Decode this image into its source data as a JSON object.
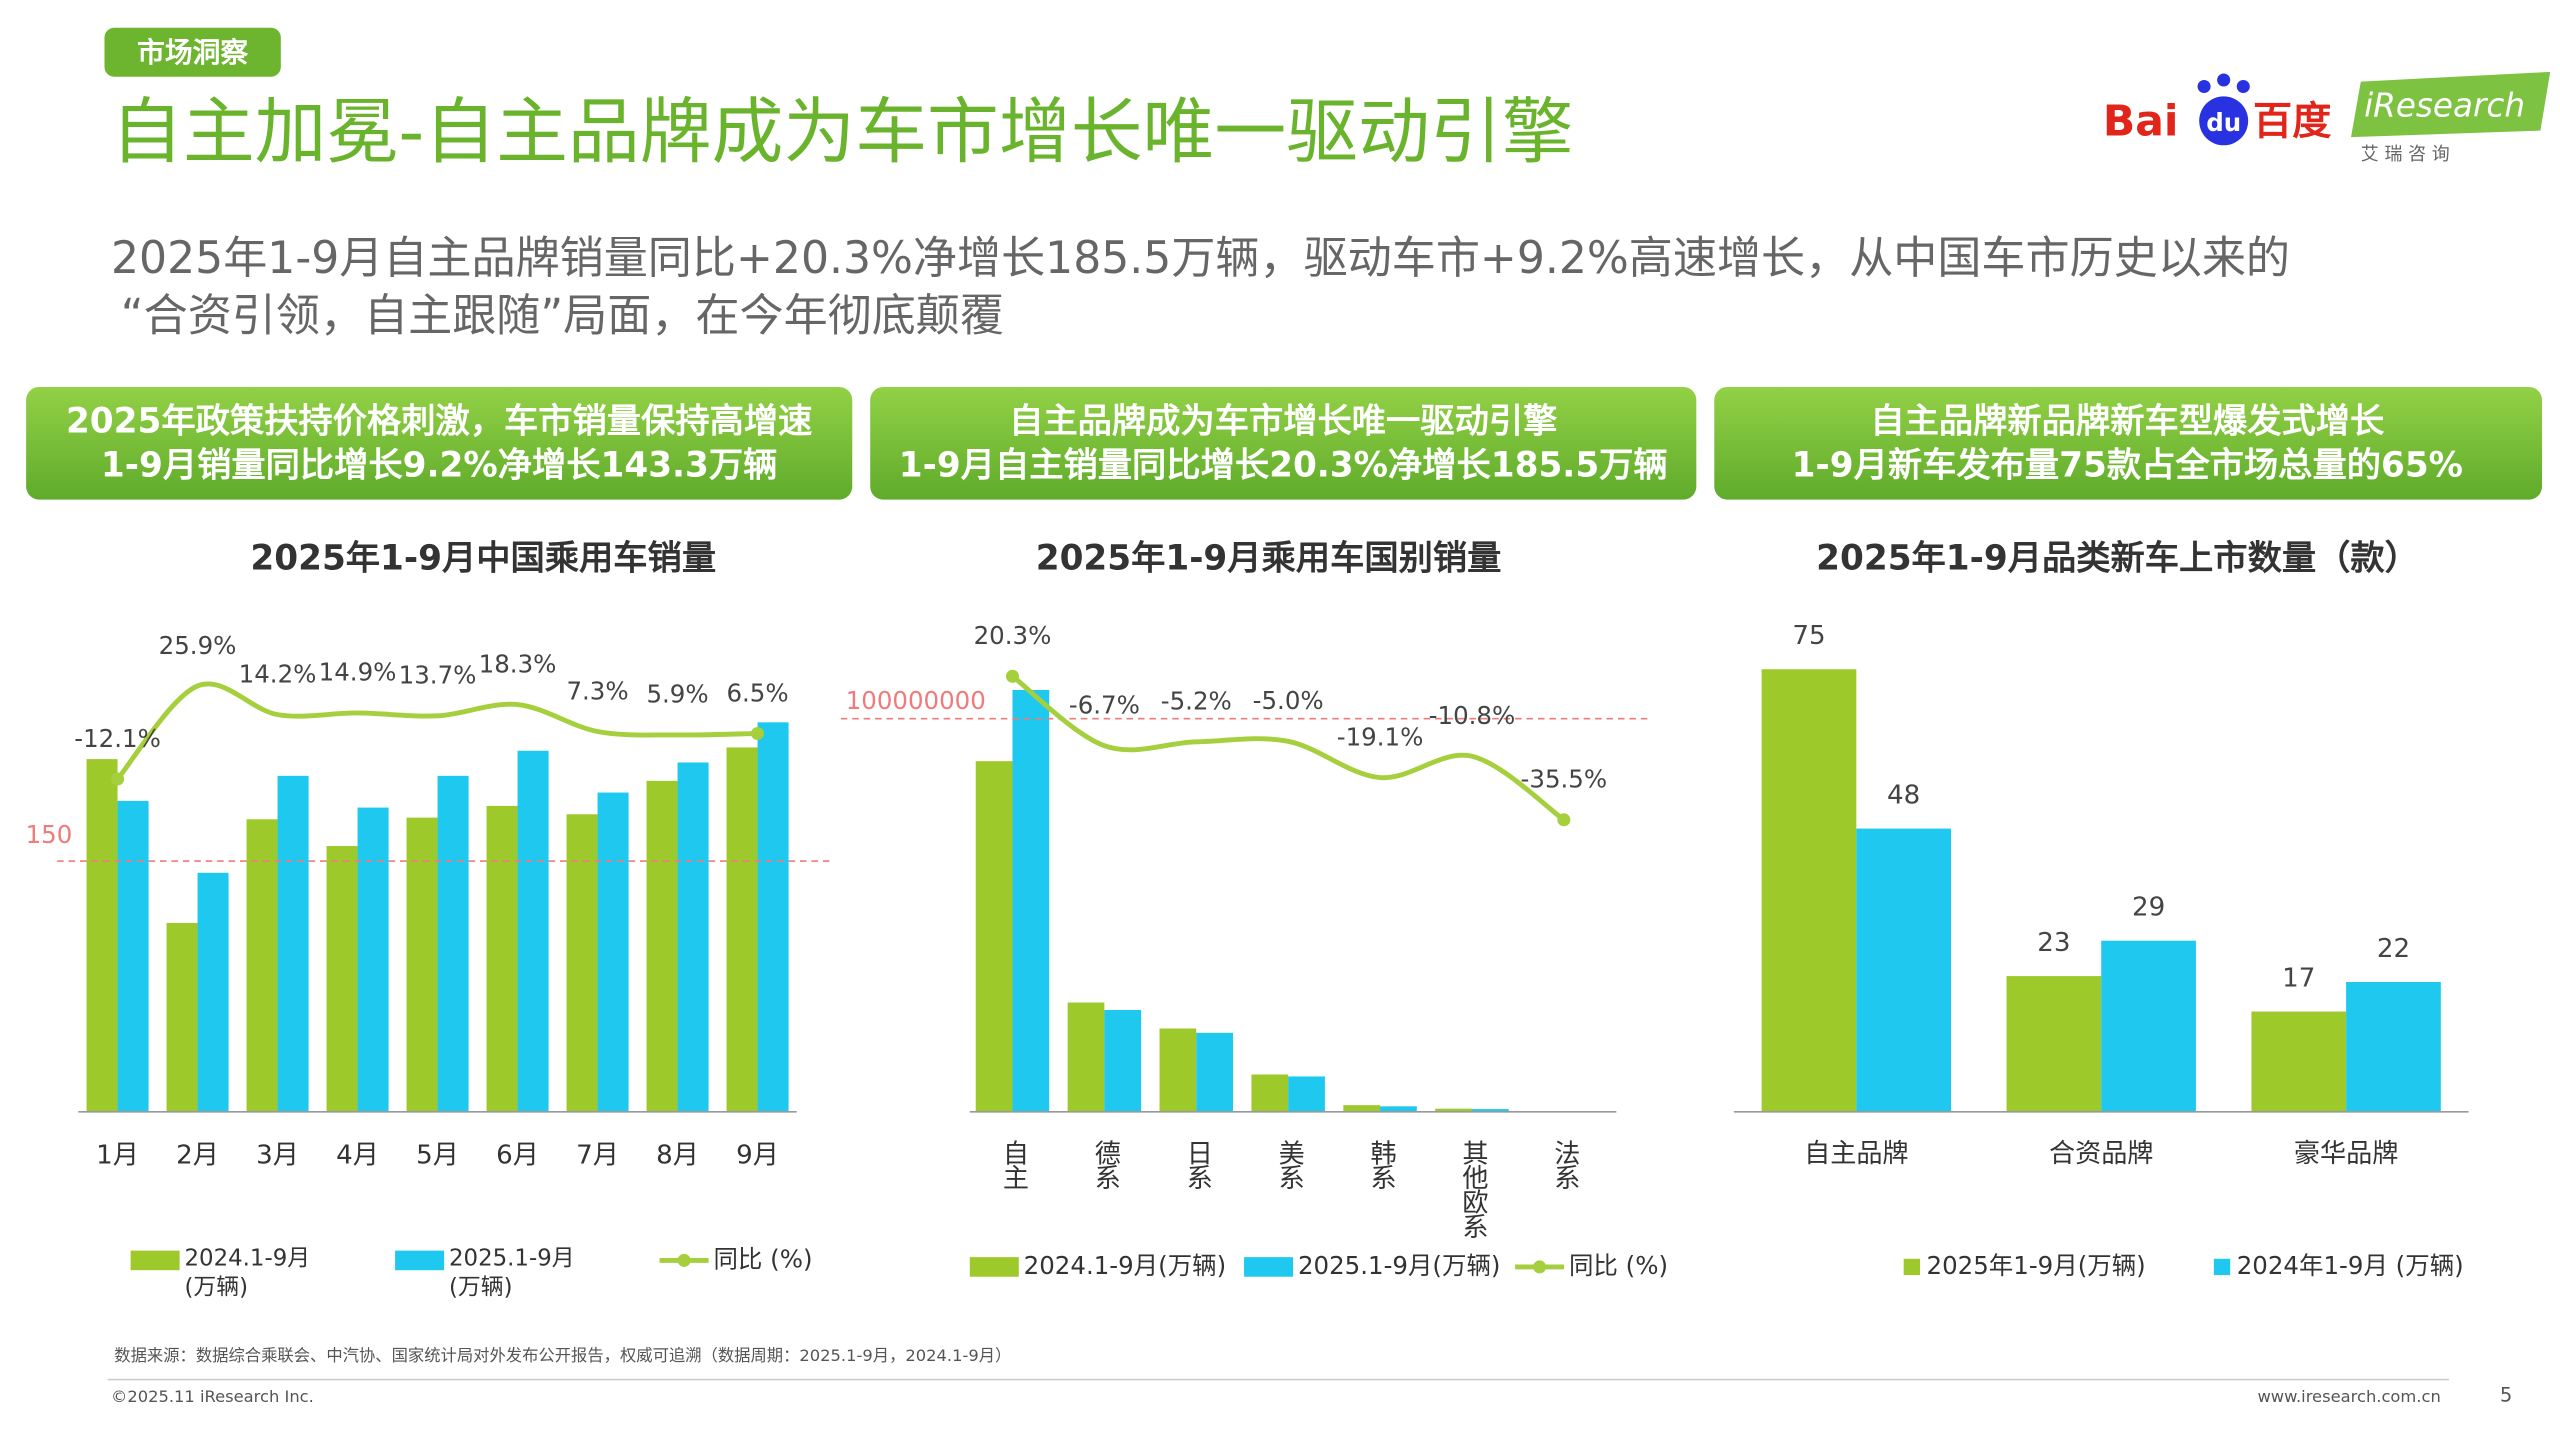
{
  "page": {
    "tag": "市场洞察",
    "title": "自主加冕-自主品牌成为车市增长唯一驱动引擎",
    "subtitle_lines": [
      "2025年1-9月自主品牌销量同比+20.3%净增长185.5万辆，驱动车市+9.2%高速增长，从中国车市历史以来的",
      "“合资引领，自主跟随”局面，在今年彻底颠覆"
    ],
    "logos": {
      "baidu_a": "Bai",
      "baidu_b": "du",
      "baidu_c": "百度",
      "iresearch": "iResearch",
      "iresearch_cn": "艾 瑞 咨 询"
    },
    "banners": [
      [
        "2025年政策扶持价格刺激，车市销量保持高增速",
        "1-9月销量同比增长9.2%净增长143.3万辆"
      ],
      [
        "自主品牌成为车市增长唯一驱动引擎",
        "1-9月自主销量同比增长20.3%净增长185.5万辆"
      ],
      [
        "自主品牌新品牌新车型爆发式增长",
        "1-9月新车发布量75款占全市场总量的65%"
      ]
    ],
    "source": "数据来源：数据综合乘联会、中汽协、国家统计局对外发布公开报告，权威可追溯（数据周期：2025.1-9月，2024.1-9月）",
    "copyright": "©2025.11 iResearch Inc.",
    "website": "www.iresearch.com.cn",
    "page_number": "5"
  },
  "chart_data": [
    {
      "type": "bar",
      "title": "2025年1-9月中国乘用车销量",
      "categories": [
        "1月",
        "2月",
        "3月",
        "4月",
        "5月",
        "6月",
        "7月",
        "8月",
        "9月"
      ],
      "series": [
        {
          "name": "2024.1-9月(万辆)",
          "color": "#9dc92a",
          "values": [
            211,
            113,
            175,
            159,
            176,
            183,
            178,
            198,
            218
          ]
        },
        {
          "name": "2025.1-9月(万辆)",
          "color": "#1ec8ee",
          "values": [
            186,
            143,
            201,
            182,
            201,
            216,
            191,
            209,
            233
          ]
        },
        {
          "name": "同比 (%)",
          "color": "#a5cf3c",
          "type": "line",
          "axis": "y2",
          "values": [
            -12.1,
            25.9,
            14.2,
            14.9,
            13.7,
            18.3,
            7.3,
            5.9,
            6.5
          ],
          "value_labels": [
            "-12.1%",
            "25.9%",
            "14.2%",
            "14.9%",
            "13.7%",
            "18.3%",
            "7.3%",
            "5.9%",
            "6.5%"
          ]
        }
      ],
      "ylim": [
        0,
        293
      ],
      "y2lim": [
        -148,
        52
      ],
      "reference_line": 150,
      "reference_color": "#f07b7b"
    },
    {
      "type": "bar",
      "title": "2025年1-9月乘用车国别销量",
      "categories": [
        "自主",
        "德系",
        "日系",
        "美系",
        "韩系",
        "其他欧系",
        "法系"
      ],
      "series": [
        {
          "name": "2024.1-9月(万辆)",
          "color": "#9dc92a",
          "values": [
            89200000,
            27800000,
            21200000,
            9500000,
            1700000,
            800000,
            200000
          ]
        },
        {
          "name": "2025.1-9月(万辆)",
          "color": "#1ec8ee",
          "values": [
            107300000,
            25900000,
            20100000,
            9000000,
            1400000,
            700000,
            130000
          ]
        },
        {
          "name": "同比 (%)",
          "color": "#a5cf3c",
          "type": "line",
          "axis": "y2",
          "values": [
            20.3,
            -6.7,
            -5.2,
            -5.0,
            -19.1,
            -10.8,
            -35.5
          ],
          "value_labels": [
            "20.3%",
            "-6.7%",
            "-5.2%",
            "-5.0%",
            "-19.1%",
            "-10.8%",
            "-35.5%"
          ]
        }
      ],
      "ylim": [
        0,
        125000000
      ],
      "y2lim": [
        -149,
        42
      ],
      "reference_line": 100000000,
      "reference_color": "#f07b7b"
    },
    {
      "type": "bar",
      "title": "2025年1-9月品类新车上市数量（款）",
      "categories": [
        "自主品牌",
        "合资品牌",
        "豪华品牌"
      ],
      "series": [
        {
          "name": "2025年1-9月(万辆)",
          "color": "#9dc92a",
          "values": [
            75,
            23,
            17
          ]
        },
        {
          "name": "2024年1-9月 (万辆)",
          "color": "#1ec8ee",
          "values": [
            48,
            29,
            22
          ]
        }
      ],
      "ylim": [
        0,
        83
      ],
      "data_labels": true
    }
  ]
}
